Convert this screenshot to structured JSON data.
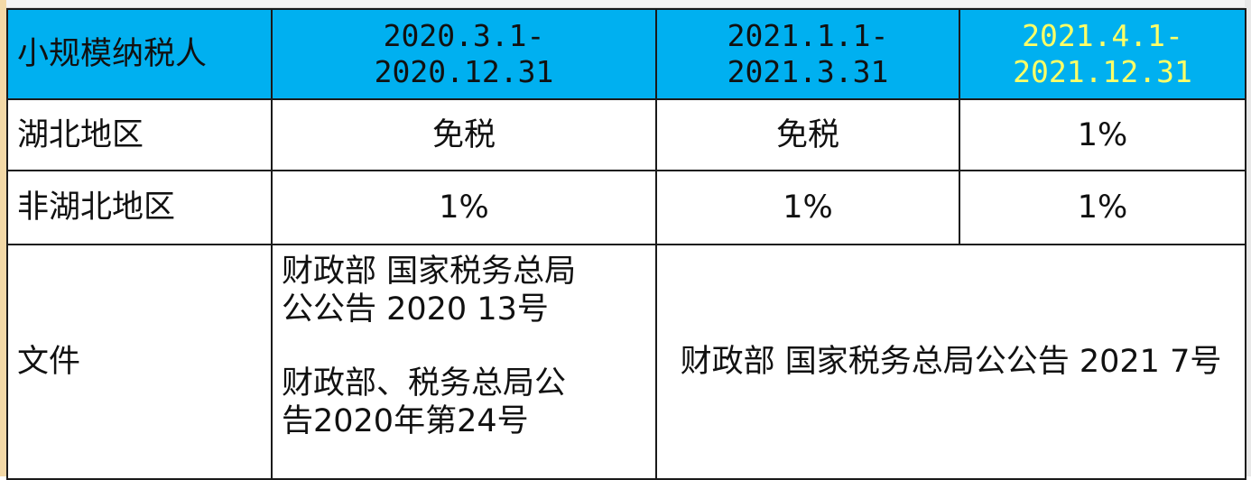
{
  "table": {
    "header": {
      "label": "小规模纳税人",
      "periods": [
        {
          "start": "2020.3.1-",
          "end": "2020.12.31"
        },
        {
          "start": "2021.1.1-",
          "end": "2021.3.31"
        },
        {
          "start": "2021.4.1-",
          "end": "2021.12.31"
        }
      ],
      "highlight_color": "#ffff66",
      "header_bg": "#00b0f0"
    },
    "rows": [
      {
        "label": "湖北地区",
        "values": [
          "免税",
          "免税",
          "1%"
        ]
      },
      {
        "label": "非湖北地区",
        "values": [
          "1%",
          "1%",
          "1%"
        ]
      }
    ],
    "documents": {
      "label": "文件",
      "doc_2020": {
        "lines_a": [
          "财政部  国家税务总局",
          "公公告  2020  13号"
        ],
        "lines_b": [
          "财政部、税务总局公",
          "告2020年第24号"
        ]
      },
      "doc_2021": {
        "lines": [
          "财政部  国家税务总局公公告  2021",
          "7号"
        ]
      }
    }
  }
}
